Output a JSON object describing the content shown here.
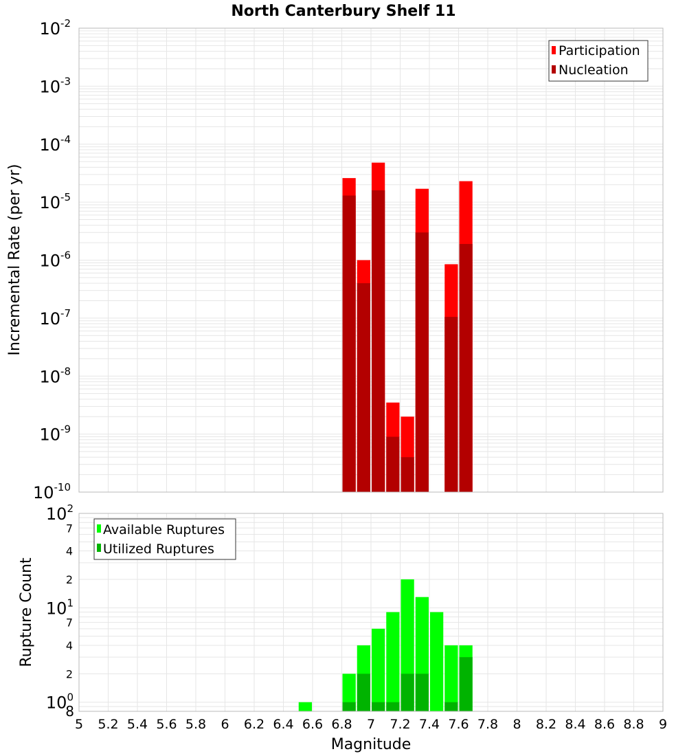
{
  "chart_data": [
    {
      "type": "bar",
      "title": "North Canterbury Shelf 11",
      "xlabel": "Magnitude",
      "ylabel": "Incremental Rate (per yr)",
      "yscale": "log",
      "ylim": [
        1e-10,
        0.01
      ],
      "xlim": [
        5,
        9
      ],
      "bin_width": 0.1,
      "y_tick_labels": [
        {
          "base": "10",
          "exp": "-10",
          "value": 1e-10
        },
        {
          "base": "10",
          "exp": "-9",
          "value": 1e-09
        },
        {
          "base": "10",
          "exp": "-8",
          "value": 1e-08
        },
        {
          "base": "10",
          "exp": "-7",
          "value": 1e-07
        },
        {
          "base": "10",
          "exp": "-6",
          "value": 1e-06
        },
        {
          "base": "10",
          "exp": "-5",
          "value": 1e-05
        },
        {
          "base": "10",
          "exp": "-4",
          "value": 0.0001
        },
        {
          "base": "10",
          "exp": "-3",
          "value": 0.001
        },
        {
          "base": "10",
          "exp": "-2",
          "value": 0.01
        }
      ],
      "legend_position": "top-right",
      "series": [
        {
          "name": "Participation",
          "color": "#ff0000",
          "x": [
            6.85,
            6.95,
            7.05,
            7.15,
            7.25,
            7.35,
            7.55,
            7.65
          ],
          "values": [
            2.6e-05,
            1e-06,
            4.8e-05,
            3.5e-09,
            2e-09,
            1.7e-05,
            8.5e-07,
            2.3e-05
          ]
        },
        {
          "name": "Nucleation",
          "color": "#b30000",
          "x": [
            6.85,
            6.95,
            7.05,
            7.15,
            7.25,
            7.35,
            7.55,
            7.65
          ],
          "values": [
            1.3e-05,
            4e-07,
            1.6e-05,
            9e-10,
            4e-10,
            3e-06,
            1.05e-07,
            1.9e-06
          ]
        }
      ]
    },
    {
      "type": "bar",
      "title": "",
      "xlabel": "Magnitude",
      "ylabel": "Rupture Count",
      "yscale": "log",
      "ylim": [
        0.8,
        100
      ],
      "xlim": [
        5,
        9
      ],
      "bin_width": 0.1,
      "x_tick_labels": [
        "5",
        "5.2",
        "5.4",
        "5.6",
        "5.8",
        "6",
        "6.2",
        "6.4",
        "6.6",
        "6.8",
        "7",
        "7.2",
        "7.4",
        "7.6",
        "7.8",
        "8",
        "8.2",
        "8.4",
        "8.6",
        "8.8",
        "9"
      ],
      "y_tick_labels": [
        {
          "base": "",
          "exp": "",
          "minor": "8",
          "value": 0.8
        },
        {
          "base": "10",
          "exp": "0",
          "minor": "",
          "value": 1
        },
        {
          "base": "",
          "exp": "",
          "minor": "2",
          "value": 2
        },
        {
          "base": "",
          "exp": "",
          "minor": "4",
          "value": 4
        },
        {
          "base": "",
          "exp": "",
          "minor": "7",
          "value": 7
        },
        {
          "base": "10",
          "exp": "1",
          "minor": "",
          "value": 10
        },
        {
          "base": "",
          "exp": "",
          "minor": "2",
          "value": 20
        },
        {
          "base": "",
          "exp": "",
          "minor": "4",
          "value": 40
        },
        {
          "base": "",
          "exp": "",
          "minor": "7",
          "value": 70
        },
        {
          "base": "10",
          "exp": "2",
          "minor": "",
          "value": 100
        }
      ],
      "legend_position": "top-left",
      "series": [
        {
          "name": "Available Ruptures",
          "color": "#00ff00",
          "x": [
            6.55,
            6.85,
            6.95,
            7.05,
            7.15,
            7.25,
            7.35,
            7.45,
            7.55,
            7.65
          ],
          "values": [
            1,
            2,
            4,
            6,
            9,
            20,
            13,
            9,
            4,
            4
          ]
        },
        {
          "name": "Utilized Ruptures",
          "color": "#00b300",
          "x": [
            6.85,
            6.95,
            7.05,
            7.15,
            7.25,
            7.35,
            7.55,
            7.65
          ],
          "values": [
            1,
            2,
            1,
            1,
            2,
            2,
            1,
            3
          ]
        }
      ]
    }
  ]
}
